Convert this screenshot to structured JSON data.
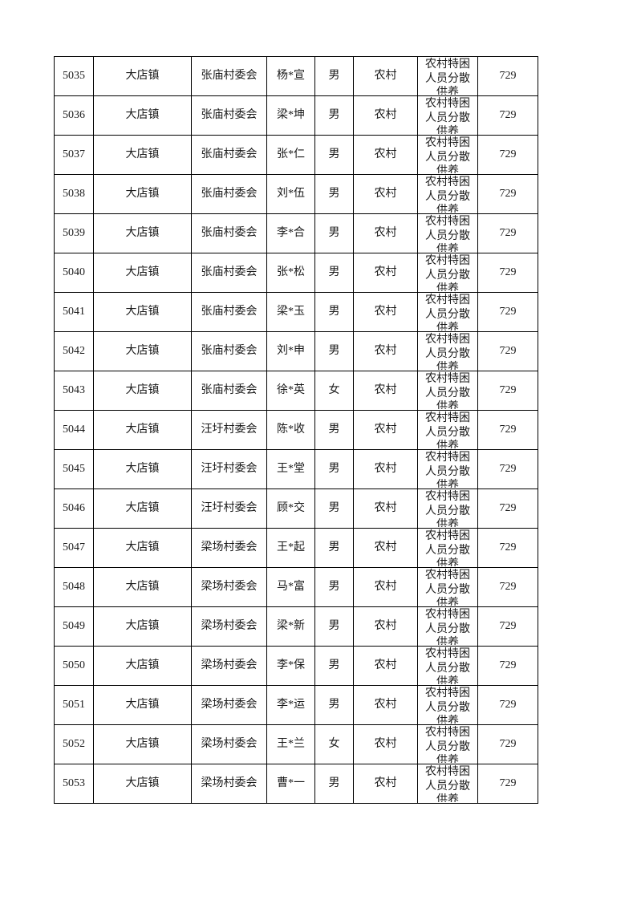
{
  "page": {
    "background_color": "#ffffff",
    "text_color": "#1a1a1a",
    "border_color": "#000000"
  },
  "table": {
    "column_keys": [
      "seq",
      "town",
      "village",
      "name",
      "gender",
      "area",
      "category",
      "amount"
    ],
    "rows": [
      {
        "seq": "5035",
        "town": "大店镇",
        "village": "张庙村委会",
        "name": "杨*宣",
        "gender": "男",
        "area": "农村",
        "category": "农村特困人员分散供养",
        "amount": "729"
      },
      {
        "seq": "5036",
        "town": "大店镇",
        "village": "张庙村委会",
        "name": "梁*坤",
        "gender": "男",
        "area": "农村",
        "category": "农村特困人员分散供养",
        "amount": "729"
      },
      {
        "seq": "5037",
        "town": "大店镇",
        "village": "张庙村委会",
        "name": "张*仁",
        "gender": "男",
        "area": "农村",
        "category": "农村特困人员分散供养",
        "amount": "729"
      },
      {
        "seq": "5038",
        "town": "大店镇",
        "village": "张庙村委会",
        "name": "刘*伍",
        "gender": "男",
        "area": "农村",
        "category": "农村特困人员分散供养",
        "amount": "729"
      },
      {
        "seq": "5039",
        "town": "大店镇",
        "village": "张庙村委会",
        "name": "李*合",
        "gender": "男",
        "area": "农村",
        "category": "农村特困人员分散供养",
        "amount": "729"
      },
      {
        "seq": "5040",
        "town": "大店镇",
        "village": "张庙村委会",
        "name": "张*松",
        "gender": "男",
        "area": "农村",
        "category": "农村特困人员分散供养",
        "amount": "729"
      },
      {
        "seq": "5041",
        "town": "大店镇",
        "village": "张庙村委会",
        "name": "梁*玉",
        "gender": "男",
        "area": "农村",
        "category": "农村特困人员分散供养",
        "amount": "729"
      },
      {
        "seq": "5042",
        "town": "大店镇",
        "village": "张庙村委会",
        "name": "刘*申",
        "gender": "男",
        "area": "农村",
        "category": "农村特困人员分散供养",
        "amount": "729"
      },
      {
        "seq": "5043",
        "town": "大店镇",
        "village": "张庙村委会",
        "name": "徐*英",
        "gender": "女",
        "area": "农村",
        "category": "农村特困人员分散供养",
        "amount": "729"
      },
      {
        "seq": "5044",
        "town": "大店镇",
        "village": "汪圩村委会",
        "name": "陈*收",
        "gender": "男",
        "area": "农村",
        "category": "农村特困人员分散供养",
        "amount": "729"
      },
      {
        "seq": "5045",
        "town": "大店镇",
        "village": "汪圩村委会",
        "name": "王*堂",
        "gender": "男",
        "area": "农村",
        "category": "农村特困人员分散供养",
        "amount": "729"
      },
      {
        "seq": "5046",
        "town": "大店镇",
        "village": "汪圩村委会",
        "name": "顾*交",
        "gender": "男",
        "area": "农村",
        "category": "农村特困人员分散供养",
        "amount": "729"
      },
      {
        "seq": "5047",
        "town": "大店镇",
        "village": "梁场村委会",
        "name": "王*起",
        "gender": "男",
        "area": "农村",
        "category": "农村特困人员分散供养",
        "amount": "729"
      },
      {
        "seq": "5048",
        "town": "大店镇",
        "village": "梁场村委会",
        "name": "马*富",
        "gender": "男",
        "area": "农村",
        "category": "农村特困人员分散供养",
        "amount": "729"
      },
      {
        "seq": "5049",
        "town": "大店镇",
        "village": "梁场村委会",
        "name": "梁*新",
        "gender": "男",
        "area": "农村",
        "category": "农村特困人员分散供养",
        "amount": "729"
      },
      {
        "seq": "5050",
        "town": "大店镇",
        "village": "梁场村委会",
        "name": "李*保",
        "gender": "男",
        "area": "农村",
        "category": "农村特困人员分散供养",
        "amount": "729"
      },
      {
        "seq": "5051",
        "town": "大店镇",
        "village": "梁场村委会",
        "name": "李*运",
        "gender": "男",
        "area": "农村",
        "category": "农村特困人员分散供养",
        "amount": "729"
      },
      {
        "seq": "5052",
        "town": "大店镇",
        "village": "梁场村委会",
        "name": "王*兰",
        "gender": "女",
        "area": "农村",
        "category": "农村特困人员分散供养",
        "amount": "729"
      },
      {
        "seq": "5053",
        "town": "大店镇",
        "village": "梁场村委会",
        "name": "曹*一",
        "gender": "男",
        "area": "农村",
        "category": "农村特困人员分散供养",
        "amount": "729"
      }
    ]
  }
}
